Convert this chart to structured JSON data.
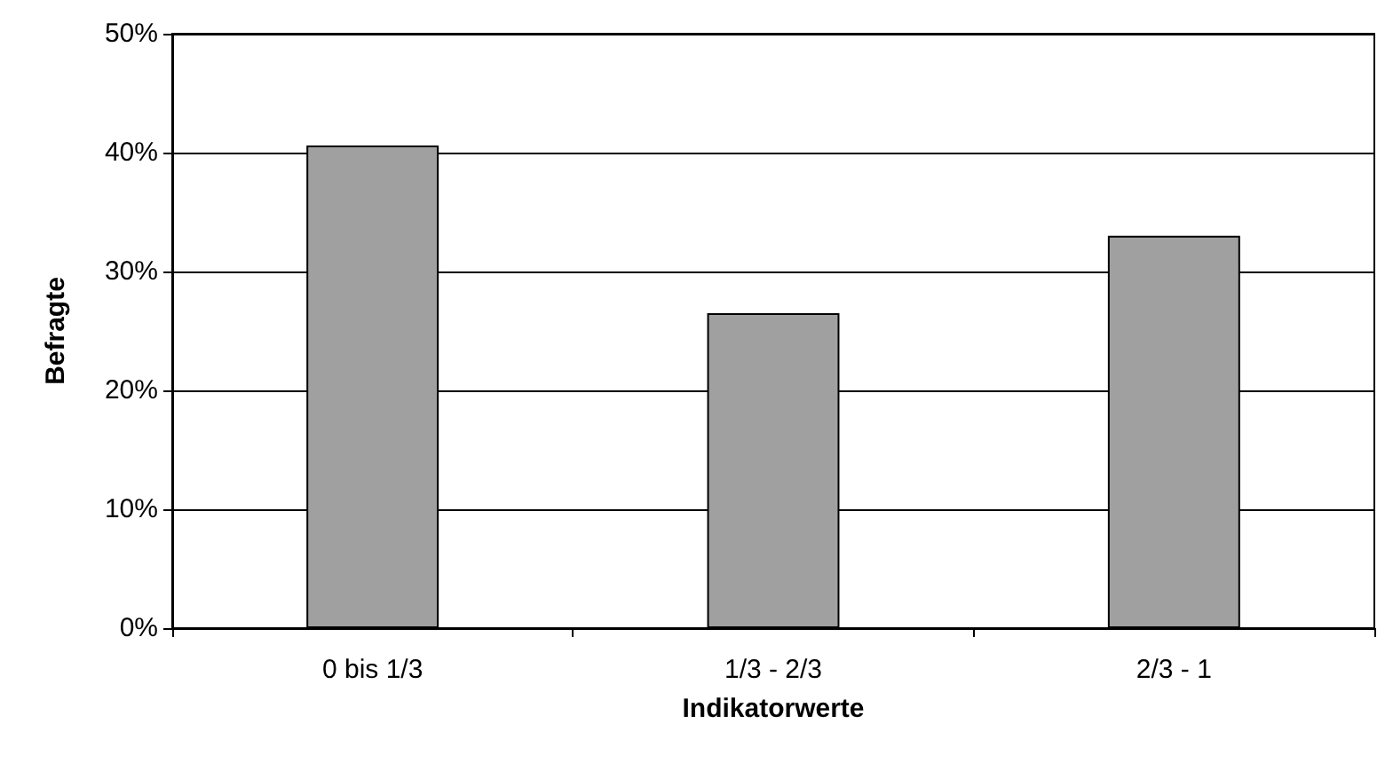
{
  "chart_data": {
    "type": "bar",
    "xlabel": "Indikatorwerte",
    "ylabel": "Befragte",
    "categories": [
      "0 bis 1/3",
      "1/3 - 2/3",
      "2/3 - 1"
    ],
    "values": [
      40.6,
      26.5,
      33.0
    ],
    "color": "#a0a0a0",
    "ylim": [
      0,
      50
    ],
    "yticks": [
      {
        "value": 0,
        "label": "0%"
      },
      {
        "value": 10,
        "label": "10%"
      },
      {
        "value": 20,
        "label": "20%"
      },
      {
        "value": 30,
        "label": "30%"
      },
      {
        "value": 40,
        "label": "40%"
      },
      {
        "value": 50,
        "label": "50%"
      }
    ],
    "grid": "y"
  }
}
